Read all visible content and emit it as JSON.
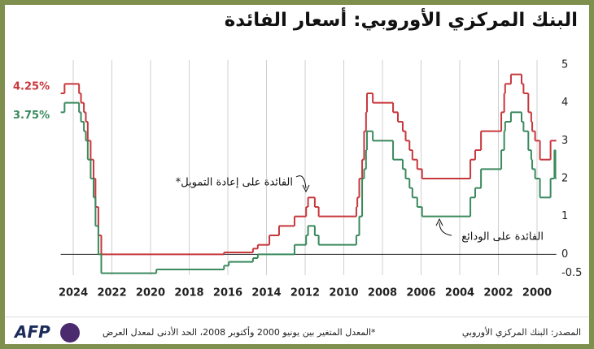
{
  "chart_data": {
    "type": "step",
    "title": "البنك المركزي الأوروبي: أسعار الفائدة",
    "source": "المصدر: البنك المركزي الأوروبي",
    "note": "*المعدل المتغير بين يونيو 2000 وأكتوبر 2008، الحد الأدنى لمعدل العرض",
    "logo": "AFP",
    "xlim": [
      2024.65,
      1999.0
    ],
    "xticks": [
      2024,
      2022,
      2020,
      2018,
      2016,
      2014,
      2012,
      2010,
      2008,
      2006,
      2004,
      2002,
      2000
    ],
    "ylim": [
      -0.55,
      5.3
    ],
    "yticks": [
      5,
      4,
      3,
      2,
      1,
      0,
      -0.5
    ],
    "grid": true,
    "series": [
      {
        "name": "الفائدة على إعادة التمويل*",
        "color": "#c8373c",
        "end_label": "4.25%",
        "x": [
          1999.0,
          1999.3,
          1999.85,
          2000.1,
          2000.25,
          2000.3,
          2000.45,
          2000.7,
          2000.8,
          2001.35,
          2001.65,
          2001.7,
          2001.85,
          2002.9,
          2003.2,
          2003.45,
          2005.95,
          2006.2,
          2006.45,
          2006.6,
          2006.8,
          2006.95,
          2007.2,
          2007.45,
          2008.5,
          2008.8,
          2008.85,
          2008.95,
          2009.05,
          2009.2,
          2009.3,
          2009.35,
          2011.3,
          2011.5,
          2011.85,
          2011.95,
          2012.55,
          2013.35,
          2013.85,
          2014.45,
          2014.7,
          2016.2,
          2022.55,
          2022.7,
          2022.85,
          2022.95,
          2023.1,
          2023.25,
          2023.35,
          2023.45,
          2023.6,
          2023.7,
          2024.45
        ],
        "values": [
          3.0,
          2.5,
          3.0,
          3.25,
          3.5,
          3.75,
          4.25,
          4.5,
          4.75,
          4.5,
          4.25,
          3.75,
          3.25,
          2.75,
          2.5,
          2.0,
          2.25,
          2.5,
          2.75,
          3.0,
          3.25,
          3.5,
          3.75,
          4.0,
          4.25,
          3.75,
          3.25,
          2.5,
          2.0,
          1.5,
          1.25,
          1.0,
          1.25,
          1.5,
          1.25,
          1.0,
          0.75,
          0.5,
          0.25,
          0.15,
          0.05,
          0.0,
          0.5,
          1.25,
          2.0,
          2.5,
          3.0,
          3.5,
          3.75,
          4.0,
          4.25,
          4.5,
          4.25
        ]
      },
      {
        "name": "الفائدة على الودائع",
        "color": "#3a8a5e",
        "end_label": "3.75%",
        "x": [
          1999.0,
          1999.05,
          1999.1,
          1999.3,
          1999.85,
          2000.1,
          2000.25,
          2000.3,
          2000.45,
          2000.7,
          2000.8,
          2001.35,
          2001.65,
          2001.7,
          2001.85,
          2002.9,
          2003.2,
          2003.45,
          2005.95,
          2006.2,
          2006.45,
          2006.6,
          2006.8,
          2006.95,
          2007.45,
          2008.5,
          2008.8,
          2008.85,
          2008.95,
          2009.05,
          2009.2,
          2009.35,
          2011.3,
          2011.5,
          2011.85,
          2011.95,
          2012.55,
          2014.45,
          2014.7,
          2015.95,
          2016.2,
          2019.7,
          2022.55,
          2022.7,
          2022.85,
          2022.95,
          2023.1,
          2023.25,
          2023.35,
          2023.45,
          2023.6,
          2023.7,
          2024.45
        ],
        "values": [
          2.0,
          2.75,
          2.0,
          1.5,
          2.0,
          2.25,
          2.5,
          2.75,
          3.25,
          3.5,
          3.75,
          3.5,
          3.25,
          2.75,
          2.25,
          1.75,
          1.5,
          1.0,
          1.25,
          1.5,
          1.75,
          2.0,
          2.25,
          2.5,
          3.0,
          3.25,
          2.75,
          2.25,
          2.0,
          1.0,
          0.5,
          0.25,
          0.5,
          0.75,
          0.5,
          0.25,
          0.0,
          -0.1,
          -0.2,
          -0.3,
          -0.4,
          -0.5,
          0.0,
          0.75,
          1.5,
          2.0,
          2.5,
          3.0,
          3.25,
          3.5,
          3.75,
          4.0,
          3.75
        ]
      }
    ]
  }
}
